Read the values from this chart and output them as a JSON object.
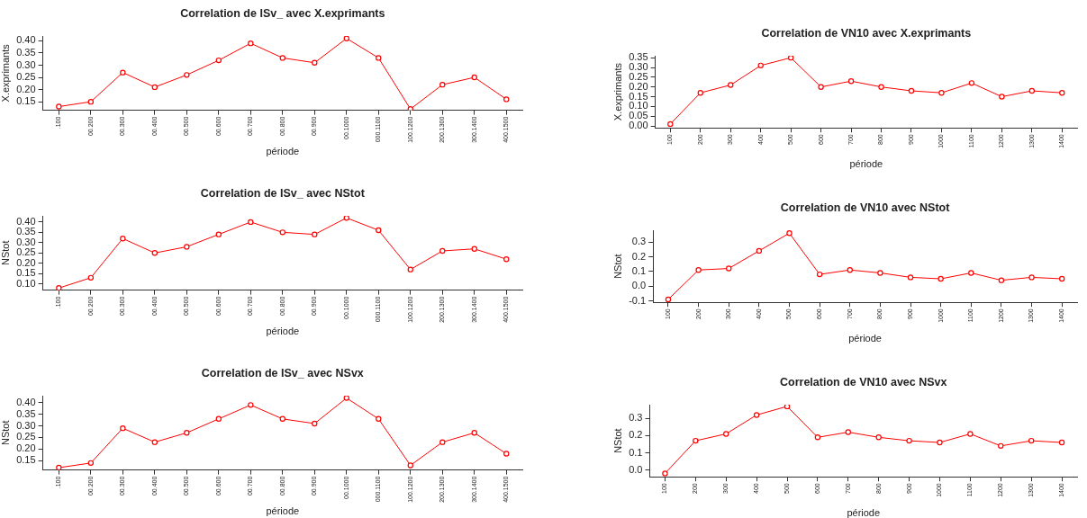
{
  "chart_data": [
    {
      "type": "line",
      "title": "Correlation de ISv_ avec X.exprimants",
      "xlabel": "période",
      "ylabel": "X.exprimants",
      "categories": [
        ".100",
        "00.200",
        "00.300",
        "00.400",
        "00.500",
        "00.600",
        "00.700",
        "00.800",
        "00.900",
        "00.1000",
        "000.1100",
        "100.1200",
        "200.1300",
        "300.1400",
        "400.1500"
      ],
      "values": [
        0.13,
        0.15,
        0.27,
        0.21,
        0.26,
        0.32,
        0.39,
        0.33,
        0.31,
        0.41,
        0.33,
        0.12,
        0.22,
        0.25,
        0.16
      ],
      "color": "#ff0000",
      "ylim": [
        0.115,
        0.42
      ],
      "yticks": [
        0.15,
        {
          "value": 0.2,
          "label": "0.20"
        },
        0.25,
        {
          "value": 0.3,
          "label": "0.30"
        },
        0.35,
        {
          "value": 0.4,
          "label": "0.40"
        }
      ],
      "marker": "circle"
    },
    {
      "type": "line",
      "title": "Correlation de VN10 avec X.exprimants",
      "xlabel": "période",
      "ylabel": "X.exprimants",
      "categories": [
        "100",
        "200",
        "300",
        "400",
        "500",
        "600",
        "700",
        "800",
        "900",
        "1000",
        "1100",
        "1200",
        "1300",
        "1400"
      ],
      "values": [
        0.01,
        0.17,
        0.21,
        0.31,
        0.35,
        0.2,
        0.23,
        0.2,
        0.18,
        0.17,
        0.22,
        0.15,
        0.18,
        0.17
      ],
      "color": "#ff0000",
      "ylim": [
        -0.01,
        0.36
      ],
      "yticks": [
        {
          "value": 0,
          "label": "0.00"
        },
        0.05,
        {
          "value": 0.1,
          "label": "0.10"
        },
        0.15,
        {
          "value": 0.2,
          "label": "0.20"
        },
        0.25,
        {
          "value": 0.3,
          "label": "0.30"
        },
        0.35
      ],
      "marker": "circle"
    },
    {
      "type": "line",
      "title": "Correlation de ISv_ avec NStot",
      "xlabel": "période",
      "ylabel": "NStot",
      "categories": [
        ".100",
        "00.200",
        "00.300",
        "00.400",
        "00.500",
        "00.600",
        "00.700",
        "00.800",
        "00.900",
        "00.1000",
        "000.1100",
        "100.1200",
        "200.1300",
        "300.1400",
        "400.1500"
      ],
      "values": [
        0.08,
        0.13,
        0.32,
        0.25,
        0.28,
        0.34,
        0.4,
        0.35,
        0.34,
        0.42,
        0.36,
        0.17,
        0.26,
        0.27,
        0.22
      ],
      "color": "#ff0000",
      "ylim": [
        0.07,
        0.43
      ],
      "yticks": [
        {
          "value": 0.1,
          "label": "0.10"
        },
        0.15,
        {
          "value": 0.2,
          "label": "0.20"
        },
        0.25,
        {
          "value": 0.3,
          "label": "0.30"
        },
        0.35,
        {
          "value": 0.4,
          "label": "0.40"
        }
      ],
      "marker": "circle"
    },
    {
      "type": "line",
      "title": "Correlation de VN10 avec NStot",
      "xlabel": "période",
      "ylabel": "NStot",
      "categories": [
        "100",
        "200",
        "300",
        "400",
        "500",
        "600",
        "700",
        "800",
        "900",
        "1000",
        "1100",
        "1200",
        "1300",
        "1400"
      ],
      "values": [
        -0.09,
        0.11,
        0.12,
        0.24,
        0.36,
        0.08,
        0.11,
        0.09,
        0.06,
        0.05,
        0.09,
        0.04,
        0.06,
        0.05
      ],
      "color": "#ff0000",
      "ylim": [
        -0.11,
        0.38
      ],
      "yticks": [
        -0.1,
        {
          "value": 0,
          "label": "0.0"
        },
        0.1,
        0.2,
        0.3
      ],
      "marker": "circle"
    },
    {
      "type": "line",
      "title": "Correlation de ISv_ avec NSvx",
      "xlabel": "période",
      "ylabel": "NStot",
      "categories": [
        ".100",
        "00.200",
        "00.300",
        "00.400",
        "00.500",
        "00.600",
        "00.700",
        "00.800",
        "00.900",
        "00.1000",
        "000.1100",
        "100.1200",
        "200.1300",
        "300.1400",
        "400.1500"
      ],
      "values": [
        0.12,
        0.14,
        0.29,
        0.23,
        0.27,
        0.33,
        0.39,
        0.33,
        0.31,
        0.42,
        0.33,
        0.13,
        0.23,
        0.27,
        0.18
      ],
      "color": "#ff0000",
      "ylim": [
        0.11,
        0.43
      ],
      "yticks": [
        0.15,
        {
          "value": 0.2,
          "label": "0.20"
        },
        0.25,
        {
          "value": 0.3,
          "label": "0.30"
        },
        0.35,
        {
          "value": 0.4,
          "label": "0.40"
        }
      ],
      "marker": "circle"
    },
    {
      "type": "line",
      "title": "Correlation de VN10 avec NSvx",
      "xlabel": "période",
      "ylabel": "NStot",
      "categories": [
        "100",
        "200",
        "300",
        "400",
        "500",
        "600",
        "700",
        "800",
        "900",
        "1000",
        "1100",
        "1200",
        "1300",
        "1400"
      ],
      "values": [
        -0.02,
        0.17,
        0.21,
        0.32,
        0.37,
        0.19,
        0.22,
        0.19,
        0.17,
        0.16,
        0.21,
        0.14,
        0.17,
        0.16
      ],
      "color": "#ff0000",
      "ylim": [
        -0.04,
        0.38
      ],
      "yticks": [
        {
          "value": 0,
          "label": "0.0"
        },
        0.1,
        0.2,
        0.3
      ],
      "marker": "circle"
    }
  ]
}
